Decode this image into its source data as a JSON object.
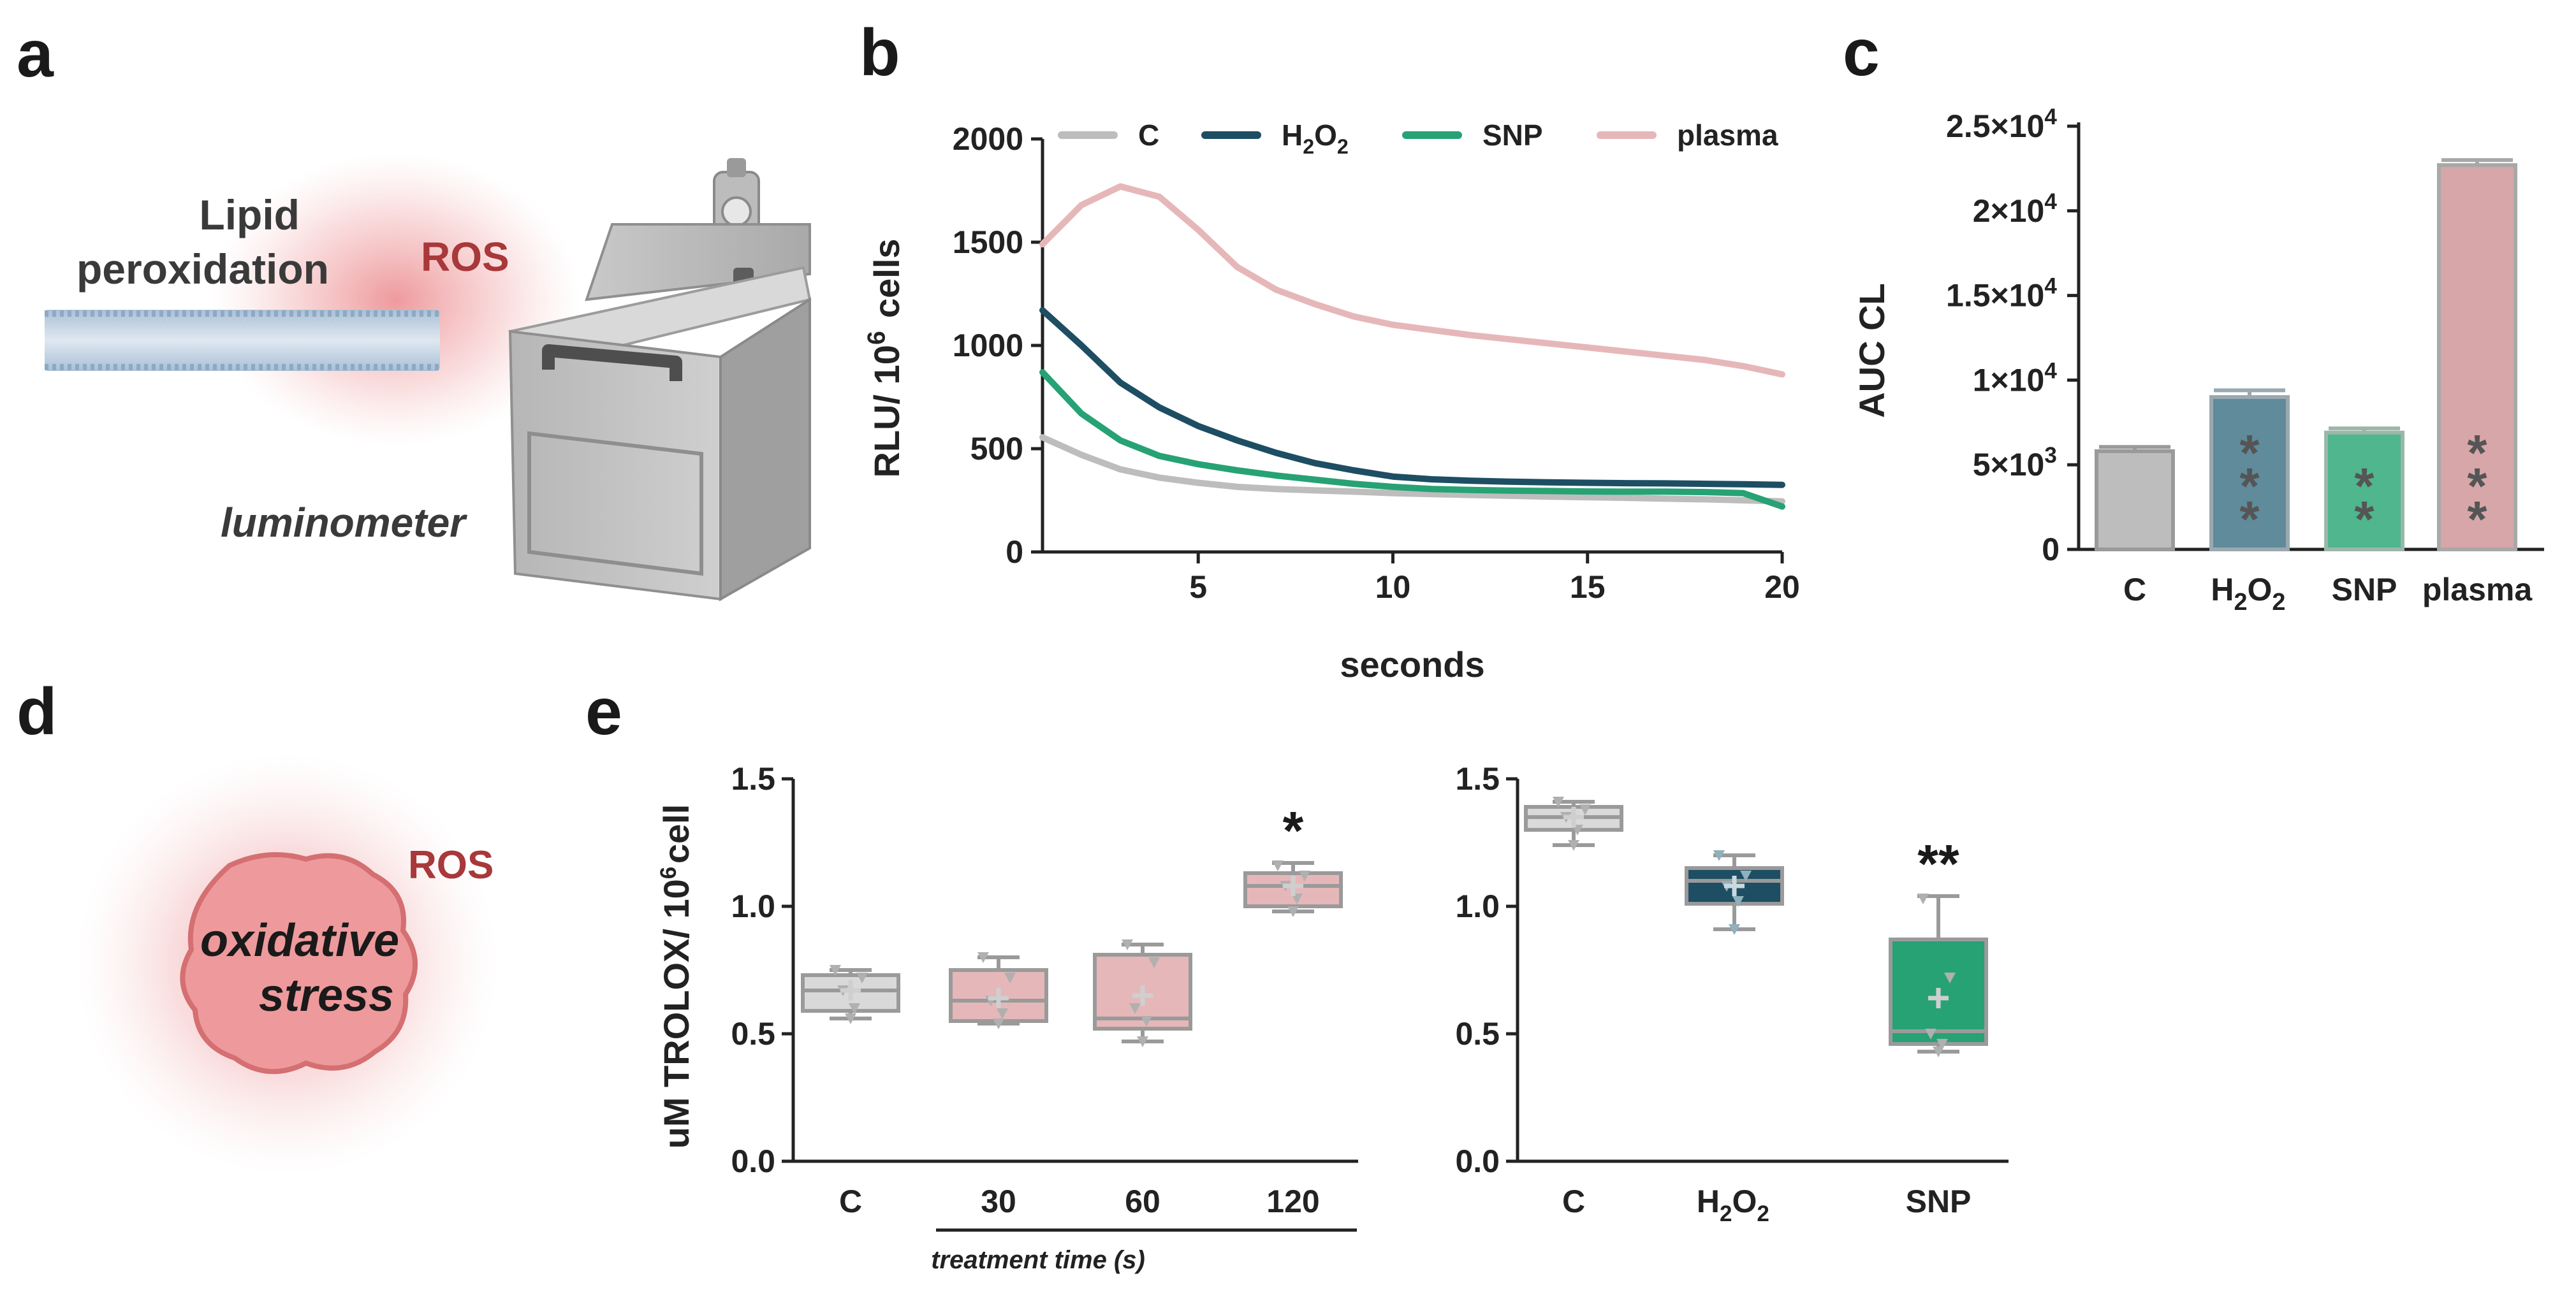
{
  "panels": {
    "a": "a",
    "b": "b",
    "c": "c",
    "d": "d",
    "e": "e"
  },
  "colors": {
    "C": "#bdbdbd",
    "H2O2": "#1d4e63",
    "SNP": "#27a275",
    "plasma": "#e6b7b9",
    "plasma_bar": "#d7a6a8",
    "h2o2_bar": "#5f8b9a",
    "snp_bar": "#4fb68d",
    "ros": "#a8383a",
    "star": "#555555"
  },
  "illustration_a": {
    "lipid_line1": "Lipid",
    "lipid_line2": "peroxidation",
    "ros": "ROS",
    "instrument": "luminometer"
  },
  "illustration_d": {
    "ros": "ROS",
    "line1": "oxidative",
    "line2": "stress"
  },
  "chart_data": [
    {
      "id": "b",
      "type": "line",
      "xlabel": "seconds",
      "ylabel": "RLU/ 10^6 cells",
      "xlim": [
        1,
        20
      ],
      "ylim": [
        0,
        2000
      ],
      "xticks": [
        5,
        10,
        15,
        20
      ],
      "yticks": [
        0,
        500,
        1000,
        1500,
        2000
      ],
      "legend": [
        "C",
        "H2O2",
        "SNP",
        "plasma"
      ],
      "legend_placement": "top",
      "series": [
        {
          "name": "C",
          "x": [
            1,
            2,
            3,
            4,
            5,
            6,
            7,
            8,
            9,
            10,
            11,
            12,
            13,
            14,
            15,
            16,
            17,
            18,
            19,
            20
          ],
          "values": [
            555,
            470,
            400,
            360,
            335,
            315,
            305,
            298,
            292,
            285,
            280,
            276,
            272,
            268,
            265,
            262,
            258,
            255,
            250,
            245
          ]
        },
        {
          "name": "H2O2",
          "x": [
            1,
            2,
            3,
            4,
            5,
            6,
            7,
            8,
            9,
            10,
            11,
            12,
            13,
            14,
            15,
            16,
            17,
            18,
            19,
            20
          ],
          "values": [
            1170,
            1000,
            820,
            700,
            610,
            540,
            480,
            430,
            395,
            365,
            352,
            345,
            340,
            337,
            335,
            333,
            332,
            330,
            328,
            325
          ]
        },
        {
          "name": "SNP",
          "x": [
            1,
            2,
            3,
            4,
            5,
            6,
            7,
            8,
            9,
            10,
            11,
            12,
            13,
            14,
            15,
            16,
            17,
            18,
            19,
            20
          ],
          "values": [
            870,
            670,
            540,
            465,
            425,
            395,
            370,
            350,
            330,
            315,
            305,
            300,
            297,
            295,
            293,
            292,
            292,
            290,
            285,
            220
          ]
        },
        {
          "name": "plasma",
          "x": [
            1,
            2,
            3,
            4,
            5,
            6,
            7,
            8,
            9,
            10,
            11,
            12,
            13,
            14,
            15,
            16,
            17,
            18,
            19,
            20
          ],
          "values": [
            1490,
            1680,
            1770,
            1720,
            1560,
            1380,
            1270,
            1200,
            1140,
            1100,
            1075,
            1050,
            1030,
            1010,
            990,
            970,
            950,
            930,
            900,
            860
          ]
        }
      ]
    },
    {
      "id": "c",
      "type": "bar",
      "ylabel": "AUC CL",
      "ylim": [
        0,
        25000
      ],
      "yticks": [
        0,
        5000,
        10000,
        15000,
        20000,
        25000
      ],
      "ytick_labels": [
        "0",
        "5×10^3",
        "1×10^4",
        "1.5×10^4",
        "2×10^4",
        "2.5×10^4"
      ],
      "categories": [
        "C",
        "H2O2",
        "SNP",
        "plasma"
      ],
      "values": [
        5800,
        9000,
        6900,
        22700
      ],
      "errors": [
        250,
        400,
        250,
        300
      ],
      "significance": [
        "",
        "***",
        "**",
        "***"
      ]
    },
    {
      "id": "e-left",
      "type": "box",
      "ylabel": "uM TROLOX/ 10^6cell",
      "ylim": [
        0,
        1.5
      ],
      "yticks": [
        0.0,
        0.5,
        1.0,
        1.5
      ],
      "ytick_labels": [
        "0.0",
        "0.5",
        "1.0",
        "1.5"
      ],
      "categories": [
        "C",
        "30",
        "60",
        "120"
      ],
      "group_label": "treatment time (s)",
      "boxes": [
        {
          "min": 0.56,
          "q1": 0.59,
          "median": 0.67,
          "q3": 0.73,
          "max": 0.75,
          "mean": 0.67,
          "points": [
            0.56,
            0.6,
            0.67,
            0.72,
            0.75
          ]
        },
        {
          "min": 0.54,
          "q1": 0.55,
          "median": 0.63,
          "q3": 0.75,
          "max": 0.8,
          "mean": 0.64,
          "points": [
            0.54,
            0.58,
            0.63,
            0.72,
            0.8
          ]
        },
        {
          "min": 0.47,
          "q1": 0.52,
          "median": 0.56,
          "q3": 0.81,
          "max": 0.85,
          "mean": 0.65,
          "points": [
            0.47,
            0.55,
            0.6,
            0.78,
            0.85
          ]
        },
        {
          "min": 0.98,
          "q1": 1.0,
          "median": 1.08,
          "q3": 1.13,
          "max": 1.17,
          "mean": 1.08,
          "points": [
            0.98,
            1.03,
            1.08,
            1.12,
            1.16
          ]
        }
      ],
      "significance": [
        "",
        "",
        "",
        "*"
      ],
      "box_colors": [
        "#d9d9d9",
        "#e6b7b9",
        "#e6b7b9",
        "#e6b7b9"
      ]
    },
    {
      "id": "e-right",
      "type": "box",
      "ylim": [
        0,
        1.5
      ],
      "yticks": [
        0.0,
        0.5,
        1.0,
        1.5
      ],
      "ytick_labels": [
        "0.0",
        "0.5",
        "1.0",
        "1.5"
      ],
      "categories": [
        "C",
        "H2O2",
        "SNP"
      ],
      "boxes": [
        {
          "min": 1.24,
          "q1": 1.3,
          "median": 1.35,
          "q3": 1.39,
          "max": 1.41,
          "mean": 1.35,
          "points": [
            1.24,
            1.3,
            1.35,
            1.38,
            1.41
          ]
        },
        {
          "min": 0.91,
          "q1": 1.01,
          "median": 1.1,
          "q3": 1.15,
          "max": 1.2,
          "mean": 1.08,
          "points": [
            0.91,
            1.02,
            1.08,
            1.12,
            1.2
          ]
        },
        {
          "min": 0.43,
          "q1": 0.46,
          "median": 0.51,
          "q3": 0.87,
          "max": 1.04,
          "mean": 0.64,
          "points": [
            0.43,
            0.46,
            0.5,
            0.72,
            1.03
          ]
        }
      ],
      "significance": [
        "",
        "",
        "**"
      ],
      "box_colors": [
        "#d9d9d9",
        "#1d4e63",
        "#27a275"
      ]
    }
  ]
}
